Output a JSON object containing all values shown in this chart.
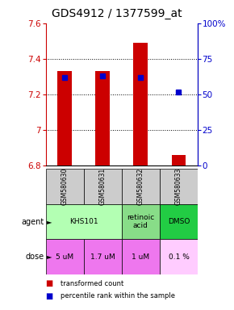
{
  "title": "GDS4912 / 1377599_at",
  "samples": [
    "GSM580630",
    "GSM580631",
    "GSM580632",
    "GSM580633"
  ],
  "bar_values": [
    7.33,
    7.33,
    7.49,
    6.86
  ],
  "bar_bottom": 6.8,
  "percentile_values": [
    62,
    63,
    62,
    52
  ],
  "ylim": [
    6.8,
    7.6
  ],
  "yticks": [
    6.8,
    7.0,
    7.2,
    7.4,
    7.6
  ],
  "ytick_labels_left": [
    "6.8",
    "7",
    "7.2",
    "7.4",
    "7.6"
  ],
  "ytick_labels_right": [
    "0",
    "25",
    "50",
    "75",
    "100%"
  ],
  "bar_color": "#cc0000",
  "percentile_color": "#0000cc",
  "agent_info": [
    [
      0,
      2,
      "#b3ffb3",
      "KHS101"
    ],
    [
      2,
      1,
      "#88dd88",
      "retinoic\nacid"
    ],
    [
      3,
      1,
      "#22cc44",
      "DMSO"
    ]
  ],
  "dose_info": [
    [
      0,
      1,
      "#ee77ee",
      "5 uM"
    ],
    [
      1,
      1,
      "#ee77ee",
      "1.7 uM"
    ],
    [
      2,
      1,
      "#ee77ee",
      "1 uM"
    ],
    [
      3,
      1,
      "#ffccff",
      "0.1 %"
    ]
  ],
  "sample_bg_color": "#cccccc",
  "title_fontsize": 10,
  "tick_fontsize": 7.5,
  "label_fontsize": 7
}
